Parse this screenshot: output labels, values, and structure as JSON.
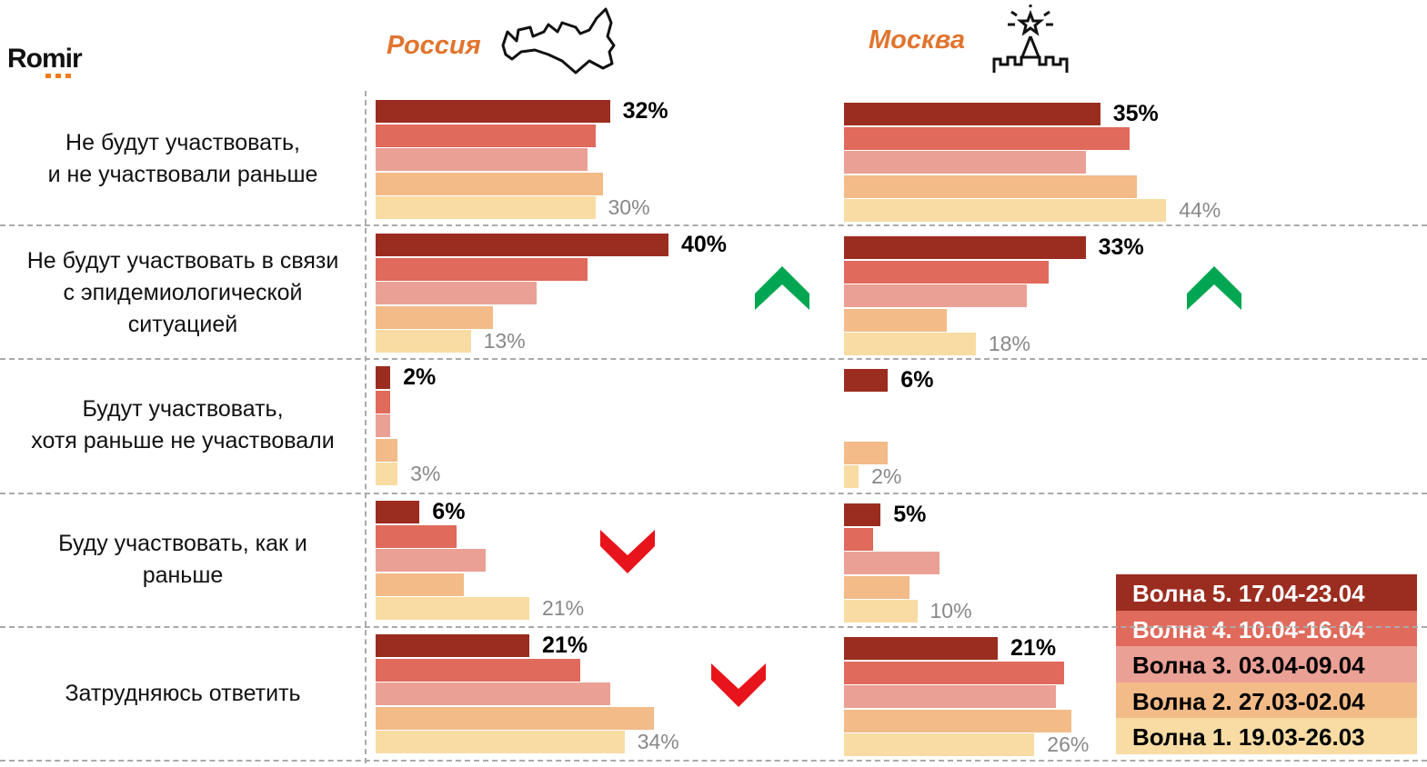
{
  "logo": "Romir",
  "regions": [
    "Россия",
    "Москва"
  ],
  "legend": [
    {
      "label": "Волна 5. 17.04-23.04",
      "color": "#9b2d20",
      "text_color": "#ffffff"
    },
    {
      "label": "Волна 4. 10.04-16.04",
      "color": "#e06a5c",
      "text_color": "#ffffff"
    },
    {
      "label": "Волна 3. 03.04-09.04",
      "color": "#eba095",
      "text_color": "#000000"
    },
    {
      "label": "Волна 2. 27.03-02.04",
      "color": "#f2bb88",
      "text_color": "#000000"
    },
    {
      "label": "Волна 1. 19.03-26.03",
      "color": "#f8dca3",
      "text_color": "#000000"
    }
  ],
  "categories": [
    "Не будут участвовать,\nи не участвовали раньше",
    "Не будут участвовать в связи\nс эпидемиологической\nситуацией",
    "Будут участвовать,\nхотя раньше не участвовали",
    "Буду участвовать, как и\nраньше",
    "Затрудняюсь ответить"
  ],
  "chart_data": [
    {
      "type": "bar",
      "title": "Россия",
      "orientation": "horizontal",
      "categories": [
        "Не будут участвовать, и не участвовали раньше",
        "Не будут участвовать в связи с эпидемиологической ситуацией",
        "Будут участвовать, хотя раньше не участвовали",
        "Буду участвовать, как и раньше",
        "Затрудняюсь ответить"
      ],
      "series": [
        {
          "name": "Волна 5. 17.04-23.04",
          "values": [
            32,
            40,
            2,
            6,
            21
          ]
        },
        {
          "name": "Волна 4. 10.04-16.04",
          "values": [
            30,
            29,
            2,
            11,
            28
          ]
        },
        {
          "name": "Волна 3. 03.04-09.04",
          "values": [
            29,
            22,
            2,
            15,
            32
          ]
        },
        {
          "name": "Волна 2. 27.03-02.04",
          "values": [
            31,
            16,
            3,
            12,
            38
          ]
        },
        {
          "name": "Волна 1. 19.03-26.03",
          "values": [
            30,
            13,
            3,
            21,
            34
          ]
        }
      ],
      "labels_wave5": [
        "32%",
        "40%",
        "2%",
        "6%",
        "21%"
      ],
      "labels_wave1": [
        "30%",
        "13%",
        "3%",
        "21%",
        "34%"
      ],
      "trends": [
        null,
        "up",
        null,
        "down",
        "down"
      ],
      "unit": "%"
    },
    {
      "type": "bar",
      "title": "Москва",
      "orientation": "horizontal",
      "categories": [
        "Не будут участвовать, и не участвовали раньше",
        "Не будут участвовать в связи с эпидемиологической ситуацией",
        "Будут участвовать, хотя раньше не участвовали",
        "Буду участвовать, как и раньше",
        "Затрудняюсь ответить"
      ],
      "series": [
        {
          "name": "Волна 5. 17.04-23.04",
          "values": [
            35,
            33,
            6,
            5,
            21
          ]
        },
        {
          "name": "Волна 4. 10.04-16.04",
          "values": [
            39,
            28,
            0,
            4,
            30
          ]
        },
        {
          "name": "Волна 3. 03.04-09.04",
          "values": [
            33,
            25,
            0,
            13,
            29
          ]
        },
        {
          "name": "Волна 2. 27.03-02.04",
          "values": [
            40,
            14,
            6,
            9,
            31
          ]
        },
        {
          "name": "Волна 1. 19.03-26.03",
          "values": [
            44,
            18,
            2,
            10,
            26
          ]
        }
      ],
      "labels_wave5": [
        "35%",
        "33%",
        "6%",
        "5%",
        "21%"
      ],
      "labels_wave1": [
        "44%",
        "18%",
        "2%",
        "10%",
        "26%"
      ],
      "trends": [
        null,
        "up",
        null,
        null,
        null
      ],
      "unit": "%"
    }
  ],
  "colors": {
    "up": "#00a651",
    "down": "#e8141b",
    "region_title": "#e0752f"
  }
}
